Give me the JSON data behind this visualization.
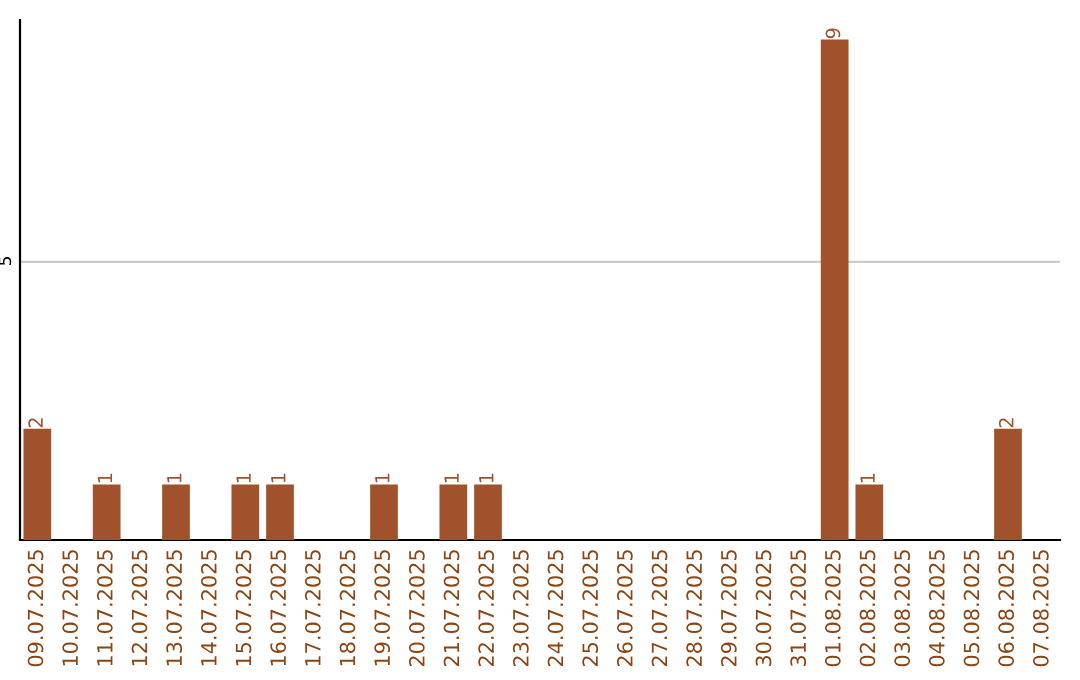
{
  "chart_data": {
    "type": "bar",
    "categories": [
      "09.07.2025",
      "10.07.2025",
      "11.07.2025",
      "12.07.2025",
      "13.07.2025",
      "14.07.2025",
      "15.07.2025",
      "16.07.2025",
      "17.07.2025",
      "18.07.2025",
      "19.07.2025",
      "20.07.2025",
      "21.07.2025",
      "22.07.2025",
      "23.07.2025",
      "24.07.2025",
      "25.07.2025",
      "26.07.2025",
      "27.07.2025",
      "28.07.2025",
      "29.07.2025",
      "30.07.2025",
      "31.07.2025",
      "01.08.2025",
      "02.08.2025",
      "03.08.2025",
      "04.08.2025",
      "05.08.2025",
      "06.08.2025",
      "07.08.2025"
    ],
    "values": [
      2,
      0,
      1,
      0,
      1,
      0,
      1,
      1,
      0,
      0,
      1,
      0,
      1,
      1,
      0,
      0,
      0,
      0,
      0,
      0,
      0,
      0,
      0,
      9,
      1,
      0,
      0,
      0,
      2,
      0
    ],
    "value_labels": [
      "2",
      null,
      "1",
      null,
      "1",
      null,
      "1",
      "1",
      null,
      null,
      "1",
      null,
      "1",
      "1",
      null,
      null,
      null,
      null,
      null,
      null,
      null,
      null,
      null,
      "9",
      "1",
      null,
      null,
      null,
      "2",
      null
    ],
    "color": "#a0522d",
    "ylim": [
      0,
      9.35
    ],
    "yticks": [
      5
    ],
    "grid": "y"
  }
}
